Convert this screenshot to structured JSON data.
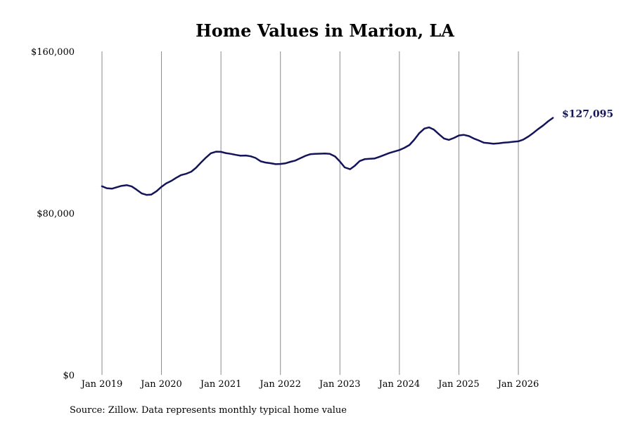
{
  "chart_data": {
    "type": "line",
    "title": "Home Values in Marion, LA",
    "xlabel": "",
    "ylabel": "",
    "ylim": [
      0,
      160000
    ],
    "y_ticks": [
      {
        "value": 0,
        "label": "$0"
      },
      {
        "value": 80000,
        "label": "$80,000"
      },
      {
        "value": 160000,
        "label": "$160,000"
      }
    ],
    "x_ticks": [
      {
        "value": 2019.0,
        "label": "Jan 2019"
      },
      {
        "value": 2020.0,
        "label": "Jan 2020"
      },
      {
        "value": 2021.0,
        "label": "Jan 2021"
      },
      {
        "value": 2022.0,
        "label": "Jan 2022"
      },
      {
        "value": 2023.0,
        "label": "Jan 2023"
      },
      {
        "value": 2024.0,
        "label": "Jan 2024"
      },
      {
        "value": 2025.0,
        "label": "Jan 2025"
      },
      {
        "value": 2026.0,
        "label": "Jan 2026"
      }
    ],
    "xlim": [
      2018.85,
      2027.0
    ],
    "grid": "vertical",
    "series": [
      {
        "color": "#14145a",
        "end_label": "$127,095",
        "points": [
          [
            2019.0,
            93300
          ],
          [
            2019.08,
            92300
          ],
          [
            2019.17,
            92100
          ],
          [
            2019.25,
            92800
          ],
          [
            2019.33,
            93500
          ],
          [
            2019.42,
            93800
          ],
          [
            2019.5,
            93200
          ],
          [
            2019.58,
            91600
          ],
          [
            2019.67,
            89700
          ],
          [
            2019.75,
            89000
          ],
          [
            2019.83,
            89200
          ],
          [
            2019.92,
            90900
          ],
          [
            2020.0,
            93000
          ],
          [
            2020.08,
            94700
          ],
          [
            2020.17,
            96000
          ],
          [
            2020.25,
            97500
          ],
          [
            2020.33,
            98800
          ],
          [
            2020.42,
            99500
          ],
          [
            2020.5,
            100500
          ],
          [
            2020.58,
            102400
          ],
          [
            2020.67,
            105200
          ],
          [
            2020.75,
            107500
          ],
          [
            2020.83,
            109600
          ],
          [
            2020.92,
            110400
          ],
          [
            2021.0,
            110300
          ],
          [
            2021.08,
            109700
          ],
          [
            2021.17,
            109300
          ],
          [
            2021.25,
            108800
          ],
          [
            2021.33,
            108400
          ],
          [
            2021.42,
            108500
          ],
          [
            2021.5,
            108100
          ],
          [
            2021.58,
            107300
          ],
          [
            2021.67,
            105600
          ],
          [
            2021.75,
            105000
          ],
          [
            2021.83,
            104700
          ],
          [
            2021.92,
            104200
          ],
          [
            2022.0,
            104300
          ],
          [
            2022.08,
            104600
          ],
          [
            2022.17,
            105400
          ],
          [
            2022.25,
            106000
          ],
          [
            2022.33,
            107100
          ],
          [
            2022.42,
            108300
          ],
          [
            2022.5,
            109100
          ],
          [
            2022.58,
            109300
          ],
          [
            2022.67,
            109400
          ],
          [
            2022.75,
            109500
          ],
          [
            2022.83,
            109300
          ],
          [
            2022.92,
            108000
          ],
          [
            2023.0,
            105500
          ],
          [
            2023.08,
            102600
          ],
          [
            2023.17,
            101700
          ],
          [
            2023.25,
            103400
          ],
          [
            2023.33,
            105700
          ],
          [
            2023.42,
            106700
          ],
          [
            2023.5,
            106900
          ],
          [
            2023.58,
            107000
          ],
          [
            2023.67,
            107900
          ],
          [
            2023.75,
            108800
          ],
          [
            2023.83,
            109700
          ],
          [
            2023.92,
            110500
          ],
          [
            2024.0,
            111200
          ],
          [
            2024.08,
            112200
          ],
          [
            2024.17,
            113700
          ],
          [
            2024.25,
            116300
          ],
          [
            2024.33,
            119400
          ],
          [
            2024.42,
            121800
          ],
          [
            2024.5,
            122400
          ],
          [
            2024.58,
            121300
          ],
          [
            2024.67,
            118900
          ],
          [
            2024.75,
            116900
          ],
          [
            2024.83,
            116200
          ],
          [
            2024.92,
            117200
          ],
          [
            2025.0,
            118400
          ],
          [
            2025.08,
            118700
          ],
          [
            2025.17,
            118100
          ],
          [
            2025.25,
            116900
          ],
          [
            2025.33,
            116000
          ],
          [
            2025.42,
            114800
          ],
          [
            2025.5,
            114600
          ],
          [
            2025.58,
            114300
          ],
          [
            2025.67,
            114500
          ],
          [
            2025.75,
            114800
          ],
          [
            2025.83,
            115000
          ],
          [
            2025.92,
            115300
          ],
          [
            2026.0,
            115500
          ],
          [
            2026.08,
            116300
          ],
          [
            2026.17,
            117900
          ],
          [
            2026.25,
            119600
          ],
          [
            2026.33,
            121500
          ],
          [
            2026.42,
            123400
          ],
          [
            2026.5,
            125400
          ],
          [
            2026.58,
            127095
          ]
        ]
      }
    ],
    "source": "Source: Zillow. Data represents monthly typical home value"
  }
}
